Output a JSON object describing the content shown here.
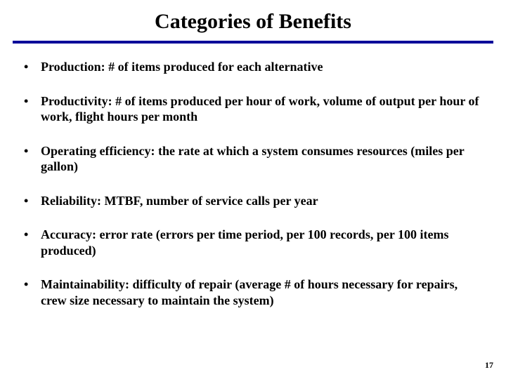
{
  "title": "Categories of Benefits",
  "divider_color": "#000099",
  "background_color": "#ffffff",
  "text_color": "#000000",
  "title_fontsize": 30,
  "body_fontsize": 18,
  "font_family": "Times New Roman",
  "bullets": [
    "Production:  # of items produced for each alternative",
    "Productivity:  # of items produced per hour of work, volume of output per hour of work, flight hours per month",
    "Operating efficiency:  the rate at which a system consumes resources (miles per gallon)",
    "Reliability:  MTBF, number of service calls per year",
    "Accuracy:  error rate (errors per time period, per 100 records, per 100 items produced)",
    "Maintainability:  difficulty of repair (average # of hours necessary for repairs, crew size necessary to maintain the system)"
  ],
  "page_number": "17"
}
